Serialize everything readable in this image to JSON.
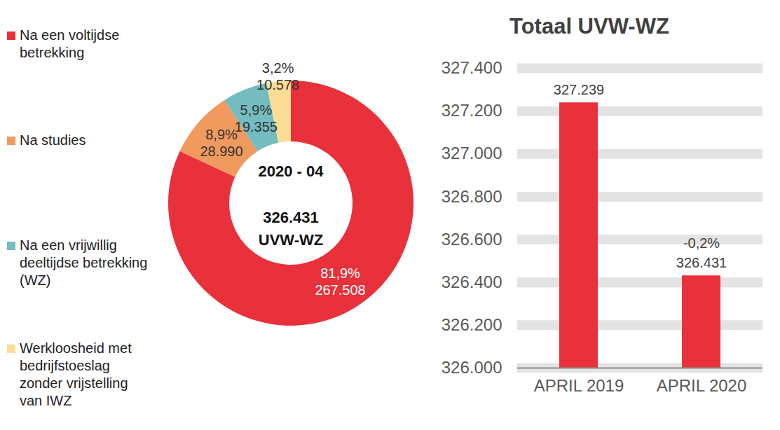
{
  "chart_data": [
    {
      "type": "donut",
      "categories": [
        "Na een voltijdse betrekking",
        "Na studies",
        "Na een vrijwillig deeltijdse betrekking (WZ)",
        "Werkloosheid met bedrijfstoeslag zonder vrijstelling van IWZ"
      ],
      "values": [
        81.9,
        8.9,
        5.9,
        3.2
      ],
      "value_labels": [
        "81,9%",
        "8,9%",
        "5,9%",
        "3,2%"
      ],
      "counts": [
        267508,
        28990,
        19355,
        10578
      ],
      "count_labels": [
        "267.508",
        "28.990",
        "19.355",
        "10.578"
      ],
      "colors": [
        "#e8313a",
        "#f19a5e",
        "#74bcc0",
        "#fddc93"
      ],
      "data_labels": true,
      "legend": "left",
      "center_title": "2020 - 04",
      "center_value": 326431,
      "center_value_label": "326.431",
      "center_unit": "UVW-WZ"
    },
    {
      "type": "bar",
      "title": "Totaal UVW-WZ",
      "categories": [
        "APRIL 2019",
        "APRIL 2020"
      ],
      "values": [
        327239,
        326431
      ],
      "value_labels": [
        "327.239",
        "326.431"
      ],
      "change": [
        null,
        -0.2
      ],
      "change_labels": [
        null,
        "-0,2%"
      ],
      "color": "#e8313a",
      "ylim": [
        326000,
        327400
      ],
      "yticks": [
        {
          "value": 326000,
          "label": "326.000"
        },
        {
          "value": 326200,
          "label": "326.200"
        },
        {
          "value": 326400,
          "label": "326.400"
        },
        {
          "value": 326600,
          "label": "326.600"
        },
        {
          "value": 326800,
          "label": "326.800"
        },
        {
          "value": 327000,
          "label": "327.000"
        },
        {
          "value": 327200,
          "label": "327.200"
        },
        {
          "value": 327400,
          "label": "327.400"
        }
      ],
      "grid": true,
      "data_labels": true
    }
  ]
}
